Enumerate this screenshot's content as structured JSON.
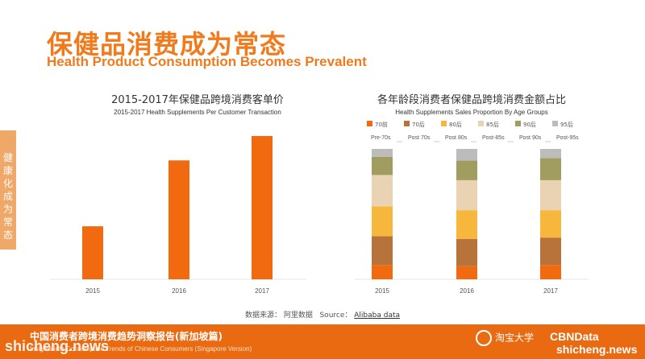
{
  "header": {
    "title_cn": "保健品消费成为常态",
    "title_en": "Health Product Consumption Becomes Prevalent"
  },
  "side_tab": {
    "chars": [
      "健",
      "康",
      "化",
      "成",
      "为",
      "常",
      "态"
    ]
  },
  "chart_data": [
    {
      "type": "bar",
      "title": "2015-2017年保健品跨境消费客单价",
      "subtitle": "2015-2017 Health Supplements Per Customer Transaction",
      "categories": [
        "2015",
        "2016",
        "2017"
      ],
      "values": [
        0.37,
        0.83,
        1.0
      ],
      "color": "#f26a0f"
    },
    {
      "type": "bar",
      "stacked": true,
      "normalized": true,
      "title": "各年龄段消费者保健品跨境消费金额占比",
      "subtitle": "Health Supplements Sales Proportion By Age Groups",
      "categories": [
        "2015",
        "2016",
        "2017"
      ],
      "legend_position": "top",
      "series": [
        {
          "name": "70前",
          "name_en": "Pre-70s",
          "color": "#f26a0f",
          "values": [
            11,
            10,
            11
          ]
        },
        {
          "name": "70后",
          "name_en": "Post 70s",
          "color": "#b7733a",
          "values": [
            22,
            21,
            21
          ]
        },
        {
          "name": "80后",
          "name_en": "Post 80s",
          "color": "#f7b73c",
          "values": [
            23,
            22,
            21
          ]
        },
        {
          "name": "85后",
          "name_en": "Post-85s",
          "color": "#ead3b3",
          "values": [
            24,
            23,
            23
          ]
        },
        {
          "name": "90后",
          "name_en": "Post 90s",
          "color": "#a19c5f",
          "values": [
            14,
            15,
            17
          ]
        },
        {
          "name": "95后",
          "name_en": "Post-95s",
          "color": "#bcbcbc",
          "values": [
            6,
            9,
            7
          ]
        }
      ]
    }
  ],
  "source": {
    "label": "数据来源：",
    "cn": "阿里数据",
    "en_label": "Source：",
    "link": "Alibaba data"
  },
  "footer": {
    "title_cn": "中国消费者跨境消费趋势洞察报告(新加坡篇)",
    "title_en": "Insights into Consumption Trends of Chinese Consumers (Singapore Version)",
    "logo_taobao": "淘宝大学",
    "logo_cbndata": "CBNData",
    "watermark": "shicheng.news"
  }
}
